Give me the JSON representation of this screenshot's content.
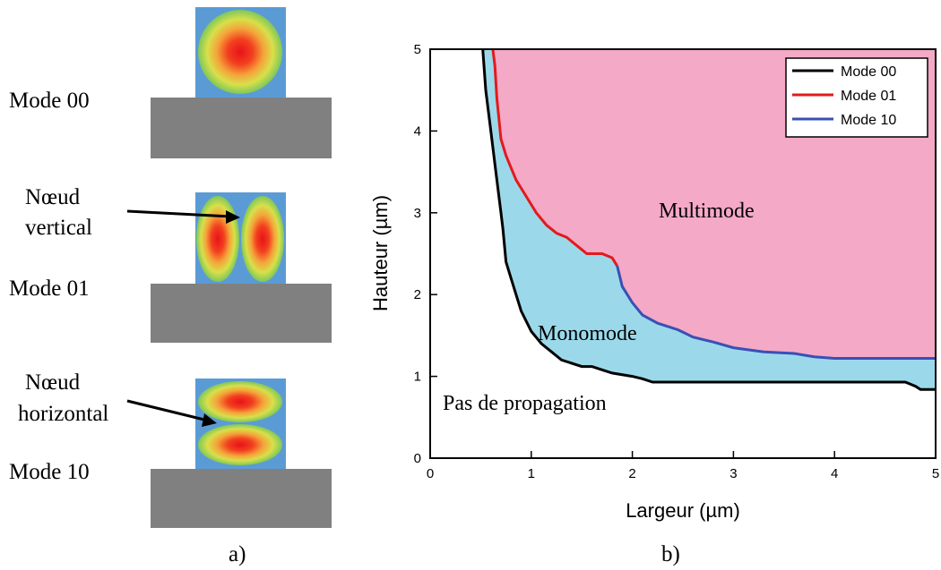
{
  "colors": {
    "core": "#5b9bd5",
    "substrate": "#808080",
    "region_multimode": "#f4a9c6",
    "region_monomode": "#9bd9ea",
    "mode00": "#000000",
    "mode01": "#e31a1c",
    "mode10": "#3a4fb5"
  },
  "panel_a": {
    "caption": "a)",
    "modes": [
      {
        "label": "Mode 00",
        "note": ""
      },
      {
        "label": "Mode 01",
        "note_line1": "Nœud",
        "note_line2": "vertical"
      },
      {
        "label": "Mode 10",
        "note_line1": "Nœud",
        "note_line2": "horizontal"
      }
    ]
  },
  "panel_b": {
    "caption": "b)"
  },
  "chart_data": {
    "type": "area",
    "xlabel": "Largeur (µm)",
    "ylabel": "Hauteur (µm)",
    "xlim": [
      0,
      5
    ],
    "ylim": [
      0,
      5
    ],
    "xticks": [
      "0",
      "1",
      "2",
      "3",
      "4",
      "5"
    ],
    "yticks": [
      "0",
      "1",
      "2",
      "3",
      "4",
      "5"
    ],
    "legend_position": "top-right",
    "region_labels": [
      "Multimode",
      "Monomode",
      "Pas de propagation"
    ],
    "series": [
      {
        "name": "Mode 00",
        "color": "#000000",
        "x": [
          0.52,
          0.55,
          0.6,
          0.65,
          0.7,
          0.72,
          0.75,
          0.8,
          0.9,
          1.0,
          1.1,
          1.2,
          1.3,
          1.5,
          1.6,
          1.7,
          1.8,
          2.0,
          2.1,
          2.2,
          3.0,
          4.0,
          4.7,
          4.8,
          4.85,
          5.0
        ],
        "y": [
          5.0,
          4.5,
          4.0,
          3.5,
          3.0,
          2.8,
          2.4,
          2.2,
          1.8,
          1.55,
          1.4,
          1.3,
          1.2,
          1.12,
          1.12,
          1.08,
          1.04,
          1.0,
          0.97,
          0.93,
          0.93,
          0.93,
          0.93,
          0.88,
          0.84,
          0.84
        ]
      },
      {
        "name": "Mode 01",
        "color": "#e31a1c",
        "x": [
          0.62,
          0.64,
          0.66,
          0.7,
          0.75,
          0.85,
          0.95,
          1.05,
          1.15,
          1.25,
          1.35,
          1.45,
          1.55,
          1.7,
          1.8,
          1.85
        ],
        "y": [
          5.0,
          4.8,
          4.4,
          3.9,
          3.7,
          3.4,
          3.2,
          3.0,
          2.85,
          2.75,
          2.7,
          2.6,
          2.5,
          2.5,
          2.45,
          2.35
        ]
      },
      {
        "name": "Mode 10",
        "color": "#3a4fb5",
        "x": [
          1.85,
          1.9,
          2.0,
          2.1,
          2.25,
          2.45,
          2.6,
          2.8,
          3.0,
          3.3,
          3.6,
          3.8,
          4.0,
          4.5,
          5.0
        ],
        "y": [
          2.35,
          2.1,
          1.9,
          1.75,
          1.65,
          1.57,
          1.48,
          1.42,
          1.35,
          1.3,
          1.28,
          1.24,
          1.22,
          1.22,
          1.22
        ]
      }
    ]
  }
}
